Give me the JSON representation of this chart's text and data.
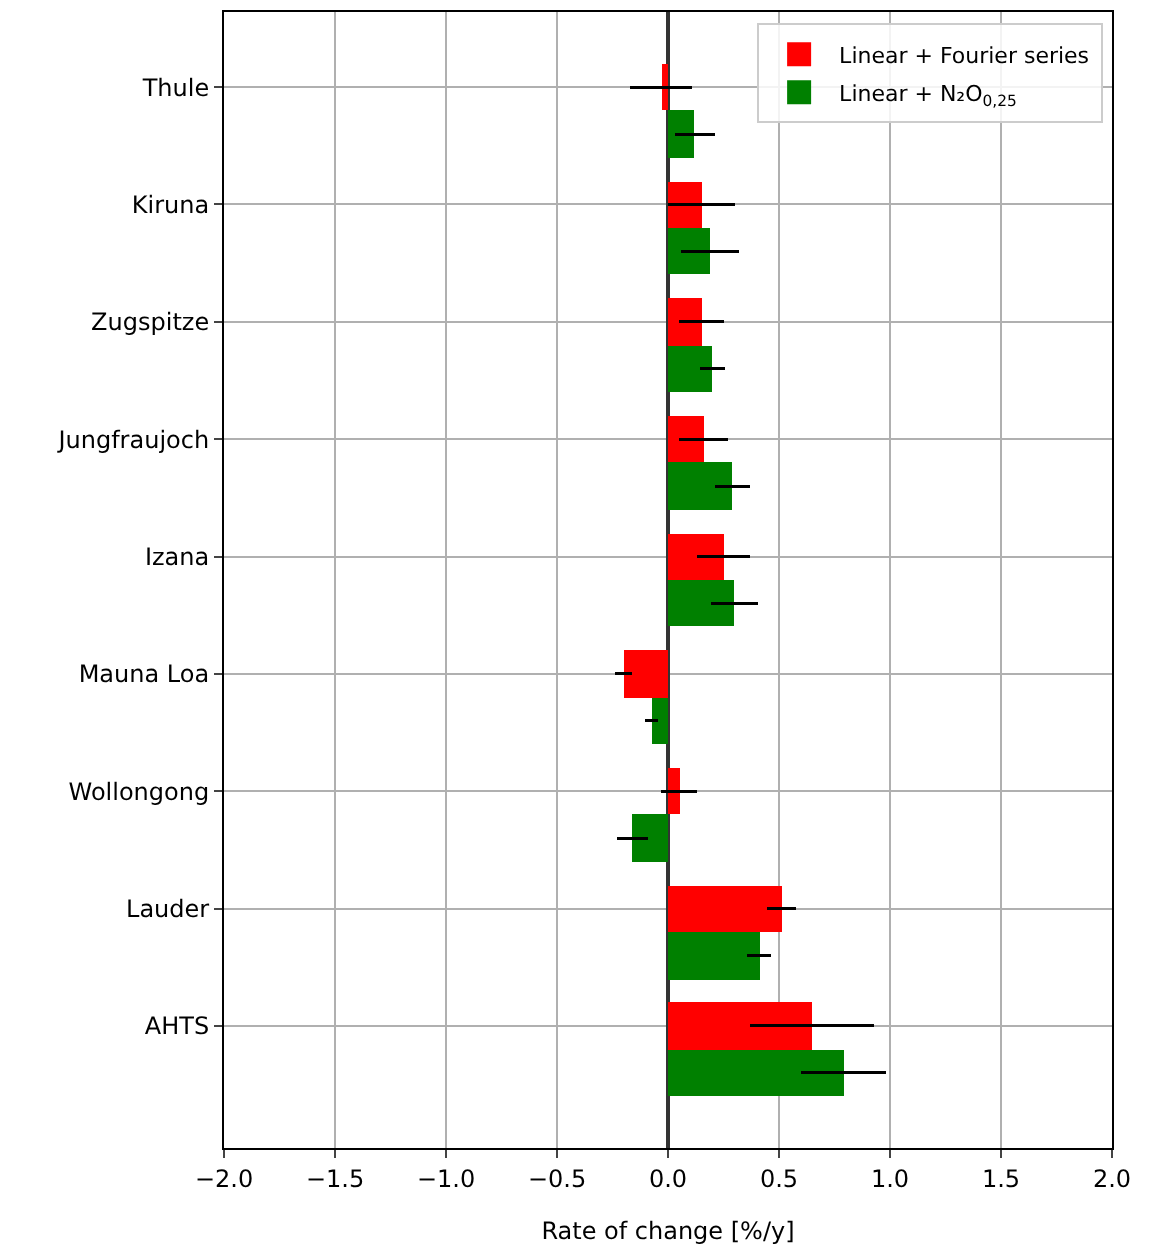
{
  "chart_data": {
    "type": "bar",
    "orientation": "horizontal",
    "xlabel": "Rate of change [%/y]",
    "categories": [
      "Thule",
      "Kiruna",
      "Zugspitze",
      "Jungfraujoch",
      "Izana",
      "Mauna Loa",
      "Wollongong",
      "Lauder",
      "AHTS"
    ],
    "series": [
      {
        "name": "Linear + Fourier series",
        "color": "#ff0000",
        "values": [
          -0.03,
          0.15,
          0.15,
          0.16,
          0.25,
          -0.2,
          0.05,
          0.51,
          0.65
        ],
        "errors": [
          0.14,
          0.15,
          0.1,
          0.11,
          0.12,
          0.04,
          0.08,
          0.065,
          0.28
        ]
      },
      {
        "name": "Linear + N₂O$_{0,25}$",
        "color": "#008000",
        "values": [
          0.12,
          0.19,
          0.2,
          0.29,
          0.3,
          -0.075,
          -0.16,
          0.41,
          0.79
        ],
        "errors": [
          0.09,
          0.13,
          0.055,
          0.08,
          0.105,
          0.03,
          0.07,
          0.055,
          0.19
        ]
      }
    ],
    "xlim": [
      -2.0,
      2.0
    ],
    "xticks": [
      {
        "value": -2.0,
        "label": "−2.0"
      },
      {
        "value": -1.5,
        "label": "−1.5"
      },
      {
        "value": -1.0,
        "label": "−1.0"
      },
      {
        "value": -0.5,
        "label": "−0.5"
      },
      {
        "value": 0.0,
        "label": "0.0"
      },
      {
        "value": 0.5,
        "label": "0.5"
      },
      {
        "value": 1.0,
        "label": "1.0"
      },
      {
        "value": 1.5,
        "label": "1.5"
      },
      {
        "value": 2.0,
        "label": "2.0"
      }
    ],
    "grid": true,
    "legend": "top right"
  }
}
